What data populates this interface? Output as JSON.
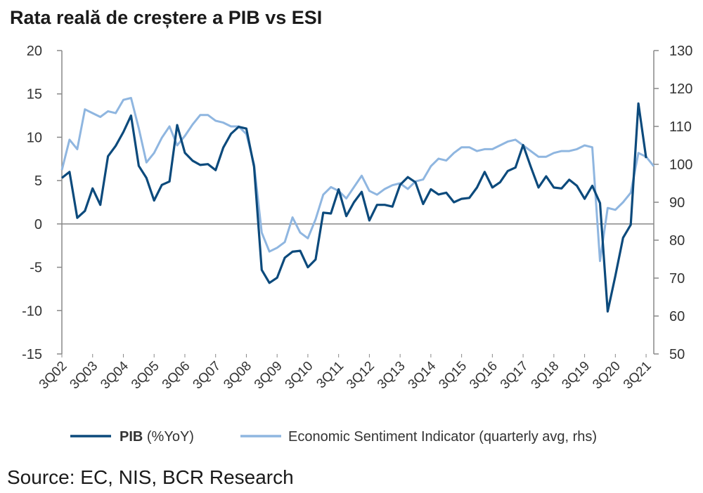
{
  "title": "Rata reală de creștere a PIB vs ESI",
  "source": "Source: EC, NIS, BCR Research",
  "chart_data": {
    "type": "line",
    "title": "Rata reală de creștere a PIB vs ESI",
    "y_left": {
      "ylim": [
        -15,
        20
      ],
      "ticks": [
        20,
        15,
        10,
        5,
        0,
        -5,
        -10,
        -15
      ]
    },
    "y_right": {
      "ylim": [
        50,
        130
      ],
      "ticks": [
        130,
        120,
        110,
        100,
        90,
        80,
        70,
        60,
        50
      ]
    },
    "x_tick_labels": [
      "3Q02",
      "3Q03",
      "3Q04",
      "3Q05",
      "3Q06",
      "3Q07",
      "3Q08",
      "3Q09",
      "3Q10",
      "3Q11",
      "3Q12",
      "3Q13",
      "3Q14",
      "3Q15",
      "3Q16",
      "3Q17",
      "3Q18",
      "3Q19",
      "3Q20",
      "3Q21"
    ],
    "x_start_quarter": "3Q02",
    "legend": [
      {
        "label_bold": "PIB",
        "label_rest": " (%YoY)",
        "color": "#0c4a7c"
      },
      {
        "label_bold": "",
        "label_rest": "Economic Sentiment Indicator (quarterly avg, rhs)",
        "color": "#8fb6e0"
      }
    ],
    "series": [
      {
        "name": "PIB (%YoY)",
        "axis": "left",
        "color": "#0c4a7c",
        "values": [
          5.3,
          6.0,
          0.7,
          1.5,
          4.1,
          2.2,
          7.8,
          9.0,
          10.6,
          12.5,
          6.7,
          5.3,
          2.7,
          4.5,
          4.9,
          11.4,
          8.2,
          7.3,
          6.8,
          6.9,
          6.2,
          8.8,
          10.4,
          11.2,
          11.0,
          6.6,
          -5.3,
          -6.8,
          -6.2,
          -3.9,
          -3.2,
          -3.1,
          -5.0,
          -4.1,
          1.3,
          1.2,
          4.0,
          0.9,
          2.5,
          3.7,
          0.4,
          2.2,
          2.2,
          2.0,
          4.5,
          5.4,
          4.8,
          2.3,
          4.0,
          3.4,
          3.6,
          2.5,
          2.9,
          3.0,
          4.2,
          6.0,
          4.2,
          4.8,
          6.1,
          6.5,
          9.1,
          6.6,
          4.2,
          5.5,
          4.2,
          4.1,
          5.1,
          4.4,
          2.9,
          4.4,
          2.4,
          -10.1,
          -6.0,
          -1.6,
          -0.1,
          13.9,
          7.6
        ]
      },
      {
        "name": "Economic Sentiment Indicator (quarterly avg, rhs)",
        "axis": "right",
        "color": "#8fb6e0",
        "values": [
          98.5,
          106.5,
          104.0,
          114.5,
          113.5,
          112.5,
          114.0,
          113.5,
          117.0,
          117.5,
          109.5,
          100.5,
          103.0,
          107.0,
          110.0,
          105.0,
          107.5,
          110.5,
          113.0,
          113.0,
          111.5,
          111.0,
          110.0,
          110.0,
          108.0,
          100.0,
          82.0,
          77.0,
          78.0,
          79.5,
          86.0,
          82.0,
          80.5,
          85.5,
          92.0,
          94.0,
          93.0,
          91.0,
          94.0,
          97.0,
          93.0,
          92.0,
          93.5,
          94.5,
          95.0,
          93.5,
          95.5,
          96.0,
          99.5,
          101.5,
          101.0,
          103.0,
          104.5,
          104.5,
          103.5,
          104.0,
          104.0,
          105.0,
          106.0,
          106.5,
          105.0,
          103.5,
          102.0,
          102.0,
          103.0,
          103.5,
          103.5,
          104.0,
          105.0,
          104.5,
          74.5,
          88.5,
          88.0,
          90.0,
          92.5,
          103.0,
          102.0,
          99.5
        ]
      }
    ]
  }
}
